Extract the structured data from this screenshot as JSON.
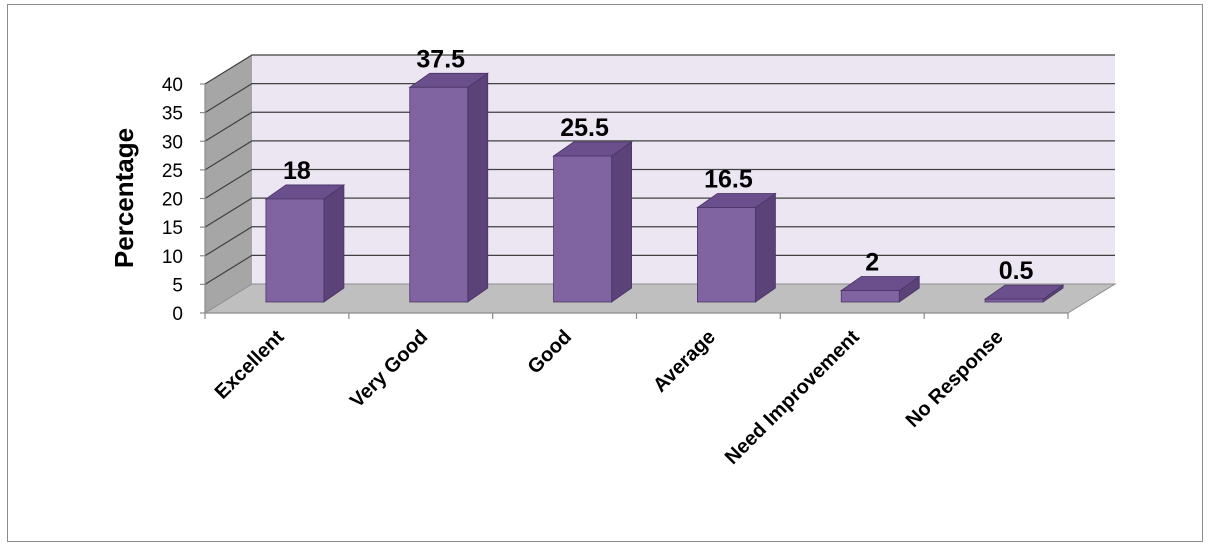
{
  "chart_data": {
    "type": "bar",
    "categories": [
      "Excellent",
      "Very Good",
      "Good",
      "Average",
      "Need Improvement",
      "No Response"
    ],
    "values": [
      18,
      37.5,
      25.5,
      16.5,
      2,
      0.5
    ],
    "data_labels": [
      "18",
      "37.5",
      "25.5",
      "16.5",
      "2",
      "0.5"
    ],
    "ylabel": "Percentage",
    "xlabel": "",
    "ylim": [
      0,
      40
    ],
    "yticks": [
      0,
      5,
      10,
      15,
      20,
      25,
      30,
      35,
      40
    ],
    "grid": true,
    "legend": "none",
    "style": "3d-column"
  },
  "colors": {
    "bar_front": "#8064a2",
    "bar_top": "#6a4f8c",
    "bar_side": "#5b4278",
    "back_wall": "#ece6f2",
    "side_wall": "#a6a6a6",
    "floor": "#bfbfbf",
    "gridline": "#404040"
  }
}
